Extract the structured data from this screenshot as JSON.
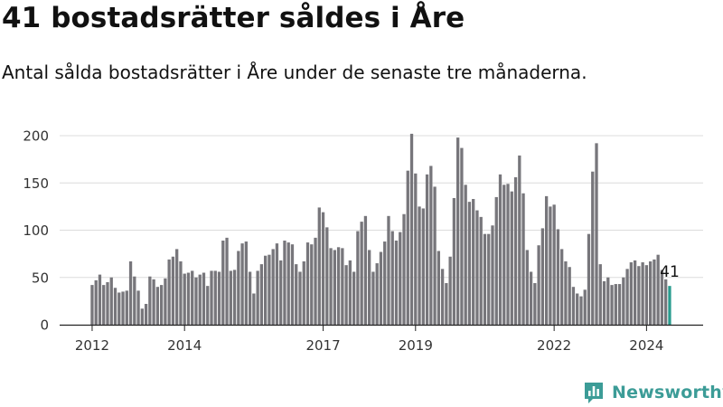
{
  "header": {
    "title": "41 bostadsrätter såldes i Åre",
    "subtitle": "Antal sålda bostadsrätter i Åre under de senaste tre månaderna."
  },
  "brand": {
    "name": "Newsworthy",
    "color": "#3c9c97"
  },
  "chart_data": {
    "type": "bar",
    "title": "",
    "xlabel": "",
    "ylabel": "",
    "ylim": [
      0,
      200
    ],
    "yticks": [
      0,
      50,
      100,
      150,
      200
    ],
    "xtick_labels": [
      "2012",
      "2014",
      "2017",
      "2019",
      "2022",
      "2024"
    ],
    "grid": true,
    "bar_color": "#77767b",
    "highlight_color": "#2a9d8f",
    "highlight_label": "41",
    "series": [
      {
        "values": [
          42,
          47,
          53,
          42,
          45,
          50,
          39,
          34,
          35,
          36,
          67,
          51,
          36,
          17,
          22,
          51,
          48,
          40,
          42,
          49,
          69,
          72,
          80,
          67,
          54,
          55,
          57,
          50,
          53,
          55,
          41,
          57,
          57,
          56,
          89,
          92,
          57,
          58,
          78,
          86,
          88,
          56,
          33,
          57,
          64,
          73,
          74,
          80,
          86,
          68,
          89,
          87,
          85,
          64,
          56,
          67,
          87,
          85,
          92,
          124,
          119,
          103,
          81,
          79,
          82,
          81,
          63,
          68,
          56,
          99,
          109,
          115,
          79,
          56,
          65,
          77,
          88,
          115,
          99,
          89,
          98,
          117,
          163,
          202,
          160,
          125,
          123,
          159,
          168,
          146,
          78,
          59,
          44,
          72,
          134,
          198,
          187,
          148,
          130,
          133,
          121,
          114,
          96,
          96,
          105,
          135,
          159,
          148,
          149,
          141,
          156,
          179,
          139,
          79,
          56,
          44,
          84,
          102,
          136,
          125,
          127,
          101,
          80,
          67,
          61,
          40,
          33,
          30,
          37,
          96,
          162,
          192,
          64,
          46,
          50,
          42,
          43,
          43,
          50,
          59,
          66,
          68,
          62,
          66,
          63,
          67,
          69,
          74,
          58,
          48,
          41
        ]
      }
    ]
  }
}
